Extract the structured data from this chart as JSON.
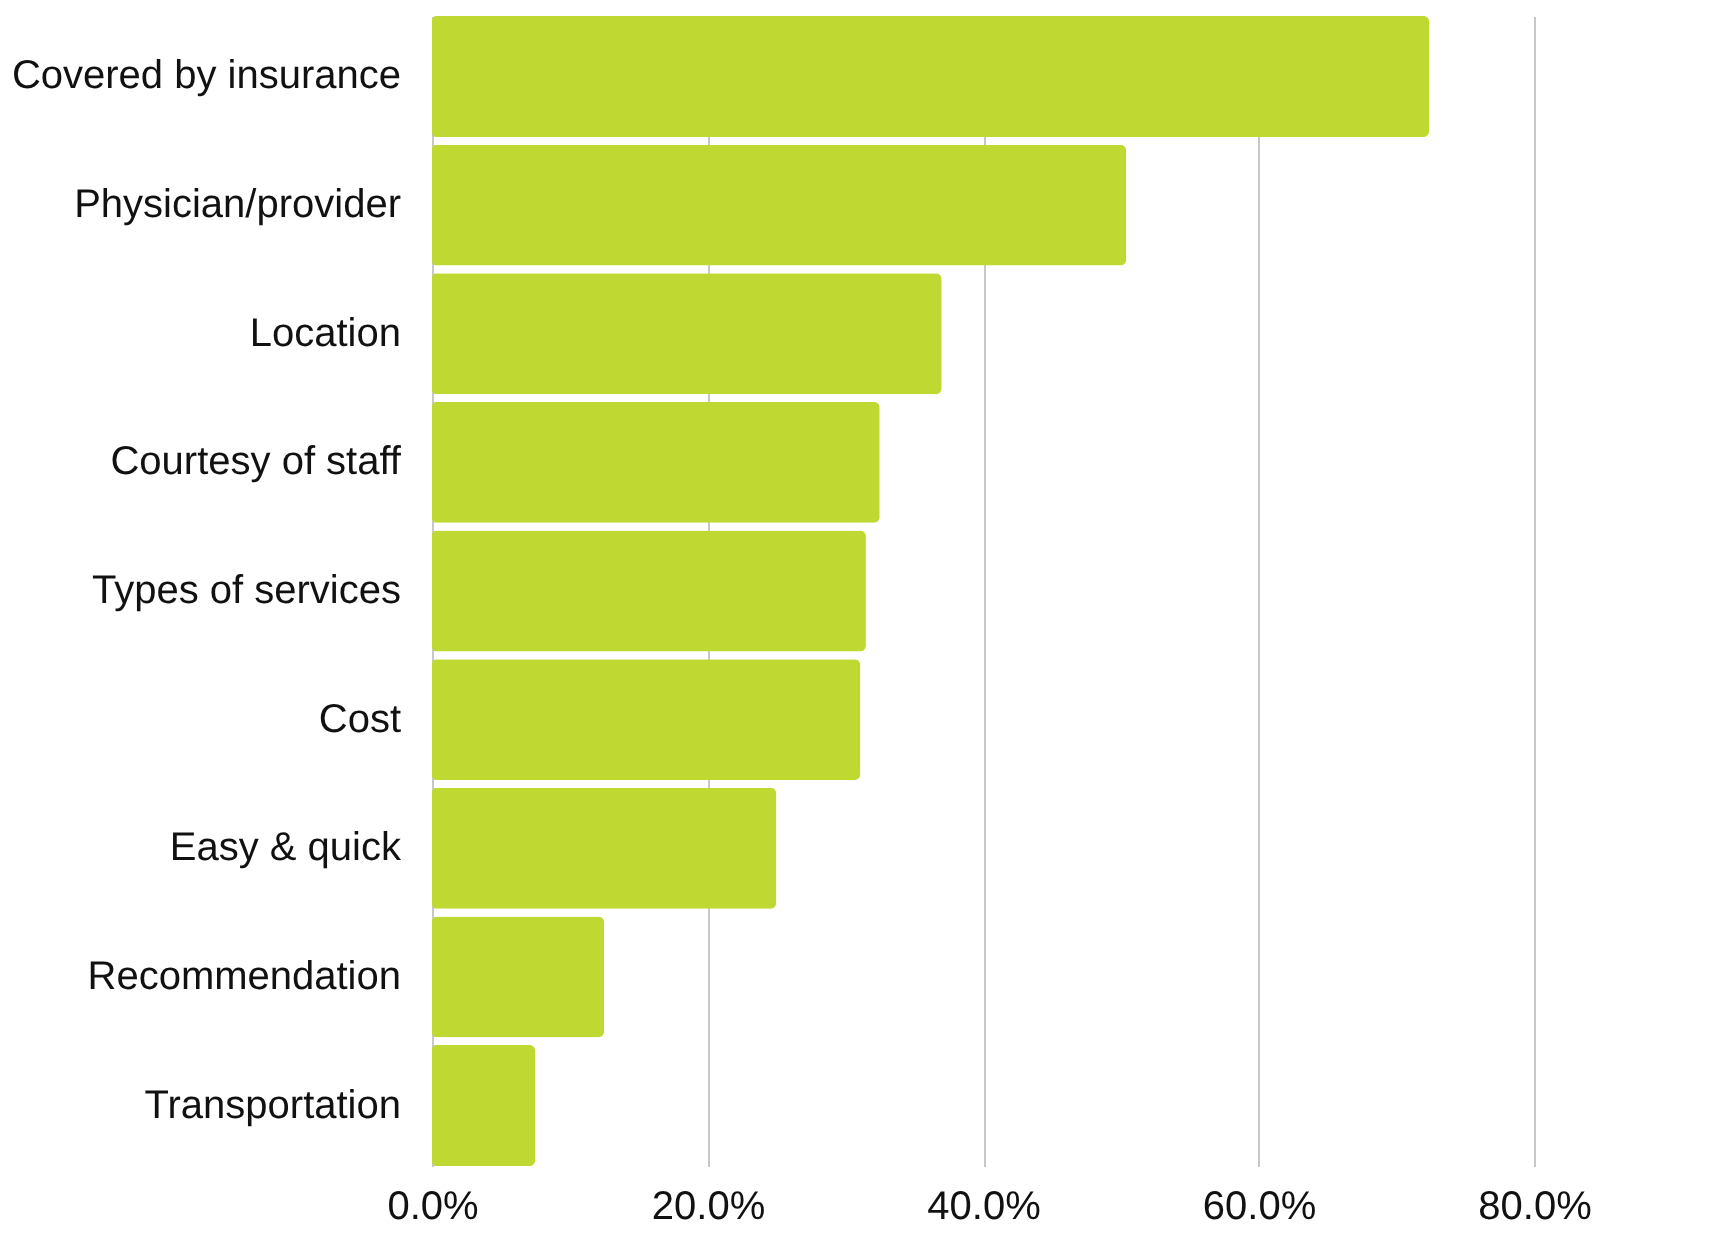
{
  "chart_data": {
    "type": "bar",
    "orientation": "horizontal",
    "categories": [
      "Covered by insurance",
      "Physician/provider",
      "Location",
      "Courtesy of staff",
      "Types of services",
      "Cost",
      "Easy & quick",
      "Recommendation",
      "Transportation"
    ],
    "values": [
      72.4,
      50.4,
      37.0,
      32.5,
      31.5,
      31.1,
      25.0,
      12.5,
      7.5
    ],
    "color": "#c0d932",
    "xlim": [
      0,
      80
    ],
    "xticks": [
      {
        "value": 0,
        "label": "0.0%"
      },
      {
        "value": 20,
        "label": "20.0%"
      },
      {
        "value": 40,
        "label": "40.0%"
      },
      {
        "value": 60,
        "label": "60.0%"
      },
      {
        "value": 80,
        "label": "80.0%"
      }
    ],
    "grid": "x"
  }
}
